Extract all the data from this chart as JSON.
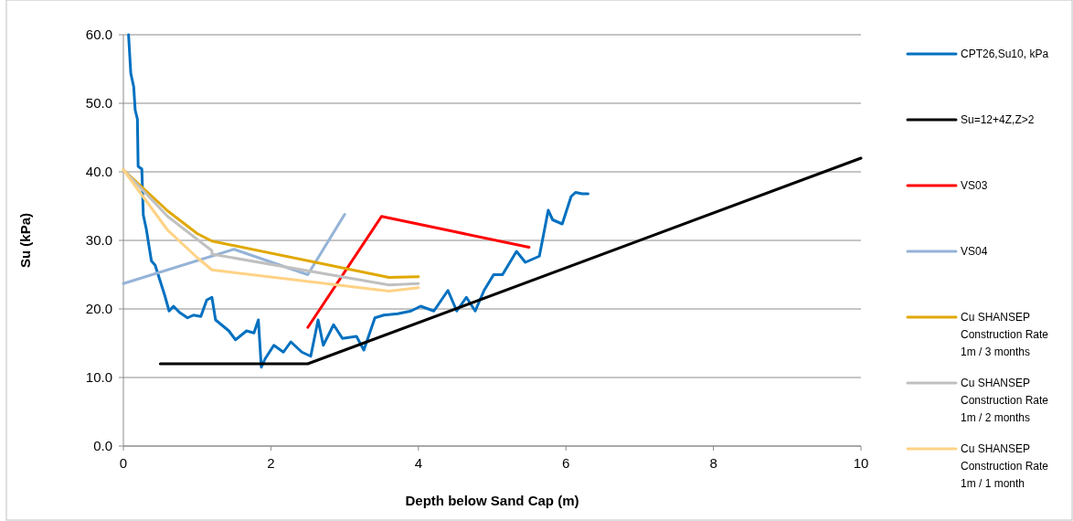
{
  "chart_data": {
    "type": "line",
    "xlabel": "Depth below Sand Cap (m)",
    "ylabel": "Su (kPa)",
    "xlim": [
      0,
      10
    ],
    "xticks": [
      0,
      2,
      4,
      6,
      8,
      10
    ],
    "ylim": [
      0,
      60
    ],
    "yticks": [
      {
        "value": 0,
        "label": "0.0"
      },
      {
        "value": 10,
        "label": "10.0"
      },
      {
        "value": 20,
        "label": "20.0"
      },
      {
        "value": 30,
        "label": "30.0"
      },
      {
        "value": 40,
        "label": "40.0"
      },
      {
        "value": 50,
        "label": "50.0"
      },
      {
        "value": 60,
        "label": "60.0"
      }
    ],
    "grid": "y",
    "legend": "right",
    "marker": "none",
    "line_style": "solid",
    "series": [
      {
        "name": "CPT26,Su10, kPa",
        "color": "#0070c0",
        "x": [
          0.07,
          0.1,
          0.14,
          0.16,
          0.19,
          0.2,
          0.25,
          0.27,
          0.31,
          0.35,
          0.38,
          0.43,
          0.56,
          0.62,
          0.68,
          0.76,
          0.87,
          0.95,
          1.05,
          1.13,
          1.2,
          1.25,
          1.43,
          1.52,
          1.67,
          1.77,
          1.83,
          1.87,
          1.92,
          2.04,
          2.17,
          2.27,
          2.42,
          2.54,
          2.64,
          2.71,
          2.85,
          2.97,
          3.16,
          3.26,
          3.41,
          3.53,
          3.72,
          3.9,
          4.03,
          4.21,
          4.4,
          4.52,
          4.65,
          4.77,
          4.89,
          5.02,
          5.14,
          5.33,
          5.45,
          5.64,
          5.76,
          5.82,
          5.95,
          6.07,
          6.13,
          6.22,
          6.3
        ],
        "values": [
          60,
          54.4,
          52.4,
          49,
          47.7,
          40.8,
          40.4,
          33.7,
          31.7,
          29,
          27,
          26.4,
          22,
          19.7,
          20.4,
          19.5,
          18.7,
          19.1,
          18.9,
          21.3,
          21.7,
          18.4,
          16.8,
          15.5,
          16.8,
          16.5,
          18.4,
          11.5,
          12.7,
          14.7,
          13.7,
          15.2,
          13.7,
          13.1,
          18.4,
          14.7,
          17.7,
          15.7,
          16,
          14,
          18.7,
          19.1,
          19.3,
          19.7,
          20.4,
          19.7,
          22.7,
          19.7,
          21.7,
          19.7,
          22.7,
          25,
          25,
          28.4,
          26.8,
          27.7,
          34.4,
          33,
          32.4,
          36.4,
          37,
          36.8,
          36.8
        ]
      },
      {
        "name": "Su=12+4Z,Z>2",
        "color": "#000000",
        "x": [
          0.5,
          2.5,
          10
        ],
        "values": [
          12,
          12,
          42
        ]
      },
      {
        "name": "VS03",
        "color": "#ff0000",
        "x": [
          2.5,
          3.5,
          5.5
        ],
        "values": [
          17.3,
          33.5,
          29
        ]
      },
      {
        "name": "VS04",
        "color": "#95b3d7",
        "x": [
          0,
          1.5,
          2.5,
          3
        ],
        "values": [
          23.7,
          28.7,
          25,
          33.8
        ]
      },
      {
        "name": "Cu SHANSEP Construction Rate 1m / 3 months",
        "color": "#e0a800",
        "x": [
          0,
          0.6,
          1.0,
          1.2,
          3.6,
          4
        ],
        "values": [
          40.3,
          34.3,
          31,
          29.9,
          24.6,
          24.7
        ]
      },
      {
        "name": "Cu SHANSEP Construction Rate 1m / 2 months",
        "color": "#c0c0c0",
        "x": [
          0,
          0.6,
          1.2,
          1.2,
          3.6,
          4
        ],
        "values": [
          40.3,
          33.5,
          28.5,
          28,
          23.5,
          23.7
        ]
      },
      {
        "name": "Cu SHANSEP Construction Rate 1m / 1 month",
        "color": "#ffd285",
        "x": [
          0,
          0.6,
          1.0,
          1.2,
          3.6,
          4
        ],
        "values": [
          40.3,
          31.5,
          27.5,
          25.7,
          22.6,
          23.1
        ]
      }
    ]
  }
}
